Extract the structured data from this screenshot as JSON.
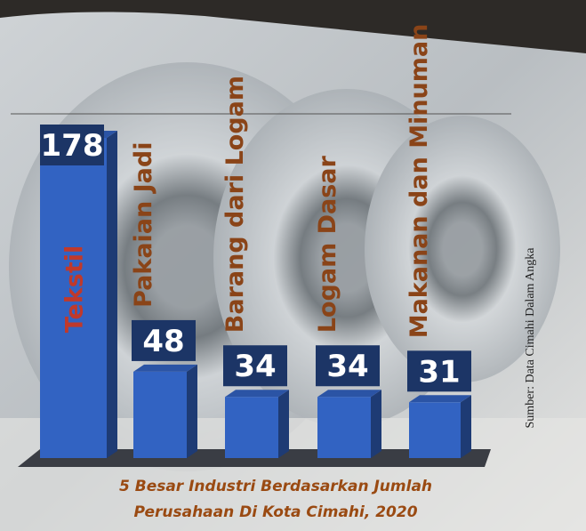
{
  "chart_data": {
    "type": "bar",
    "title": [
      "5 Besar Industri Berdasarkan Jumlah",
      "Perusahaan Di Kota Cimahi, 2020"
    ],
    "source": "Sumber: Data Cimahi Dalam Angka",
    "categories": [
      "Tekstil",
      "Pakaian Jadi",
      "Barang dari Logam",
      "Logam Dasar",
      "Makanan dan Minuman"
    ],
    "values": [
      178,
      48,
      34,
      34,
      31
    ],
    "color": "#3263c2"
  }
}
